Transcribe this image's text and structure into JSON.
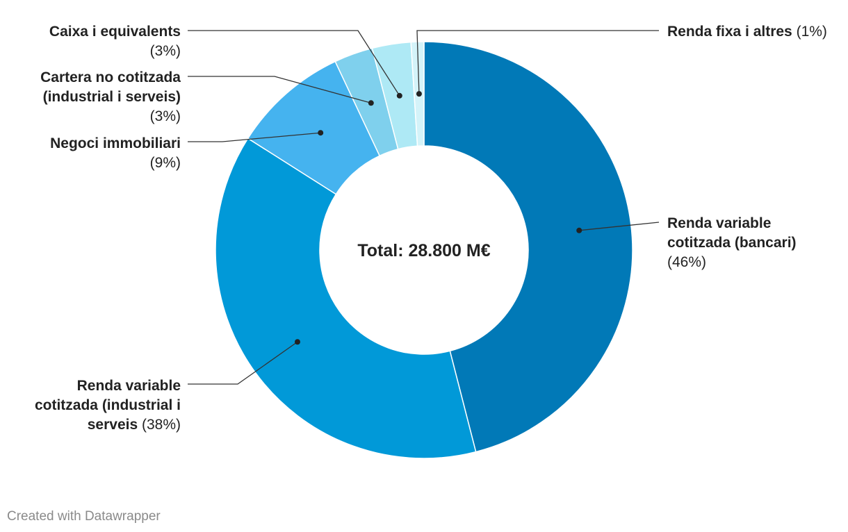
{
  "chart_data": {
    "type": "pie",
    "variant": "donut",
    "center_label": "Total: 28.800 M€",
    "slices": [
      {
        "name": "Renda variable cotitzada (bancari)",
        "value": 46,
        "pct_label": "(46%)",
        "color": "#0179b7"
      },
      {
        "name": "Renda variable cotitzada (industrial i serveis)",
        "value": 38,
        "pct_label": "(38%)",
        "color": "#0199d8"
      },
      {
        "name": "Negoci immobiliari",
        "value": 9,
        "pct_label": "(9%)",
        "color": "#45b3ef"
      },
      {
        "name": "Cartera no cotitzada (industrial i serveis)",
        "value": 3,
        "pct_label": "(3%)",
        "color": "#7fd0ed"
      },
      {
        "name": "Caixa i equivalents",
        "value": 3,
        "pct_label": "(3%)",
        "color": "#aee9f5"
      },
      {
        "name": "Renda fixa i altres",
        "value": 1,
        "pct_label": "(1%)",
        "color": "#d4f3f9"
      }
    ]
  },
  "footer": {
    "credit": "Created with Datawrapper"
  }
}
